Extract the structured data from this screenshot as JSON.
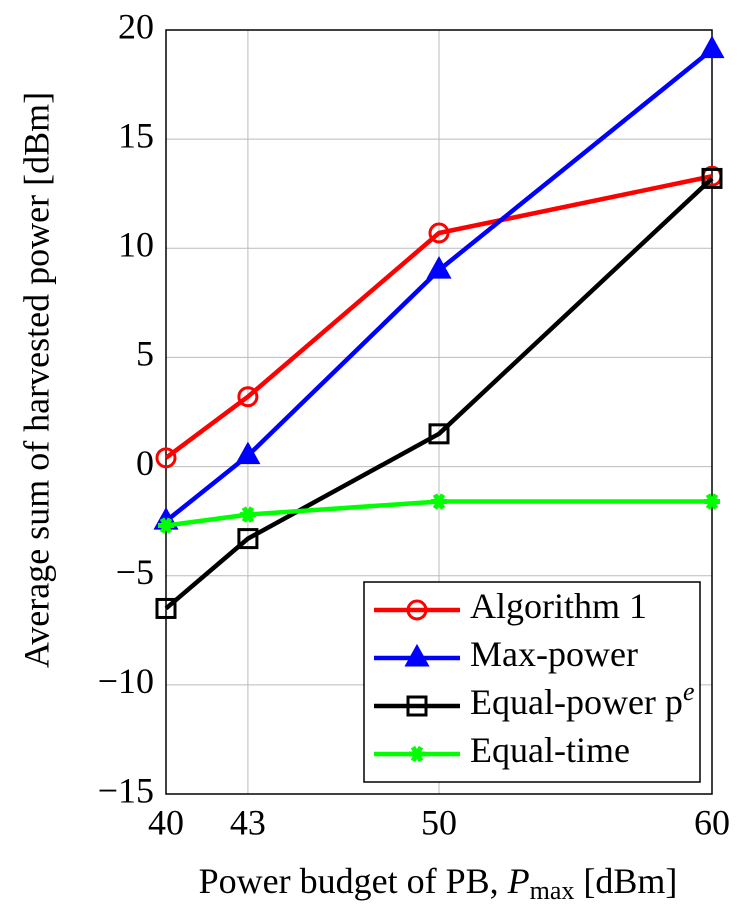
{
  "chart_data": {
    "type": "line",
    "x_label": [
      "Power budget of PB, ",
      "P",
      "max",
      " [dBm]"
    ],
    "y_label": "Average sum of harvested power [dBm]",
    "x": [
      40,
      43,
      50,
      60
    ],
    "xlim": [
      40,
      60
    ],
    "xticks": [
      40,
      43,
      50,
      60
    ],
    "ylim": [
      -15,
      20
    ],
    "yticks": [
      {
        "value": -15,
        "label": "−15"
      },
      {
        "value": -10,
        "label": "−10"
      },
      {
        "value": -5,
        "label": "−5"
      },
      0,
      5,
      10,
      15,
      20
    ],
    "grid": true,
    "legend": "lower-right",
    "series": [
      {
        "name": "Algorithm 1",
        "color": "#ff0000",
        "marker": "circle",
        "values": [
          0.4,
          3.2,
          10.7,
          13.3
        ]
      },
      {
        "name": "Max-power",
        "color": "#0000ff",
        "marker": "triangle",
        "values": [
          -2.5,
          0.5,
          9.0,
          19.1
        ]
      },
      {
        "name": "Equal-power p",
        "name_superscript": "e",
        "color": "#000000",
        "marker": "square",
        "values": [
          -6.5,
          -3.3,
          1.5,
          13.2
        ]
      },
      {
        "name": "Equal-time",
        "color": "#00ff00",
        "marker": "star",
        "values": [
          -2.7,
          -2.2,
          -1.6,
          -1.6
        ]
      }
    ]
  }
}
